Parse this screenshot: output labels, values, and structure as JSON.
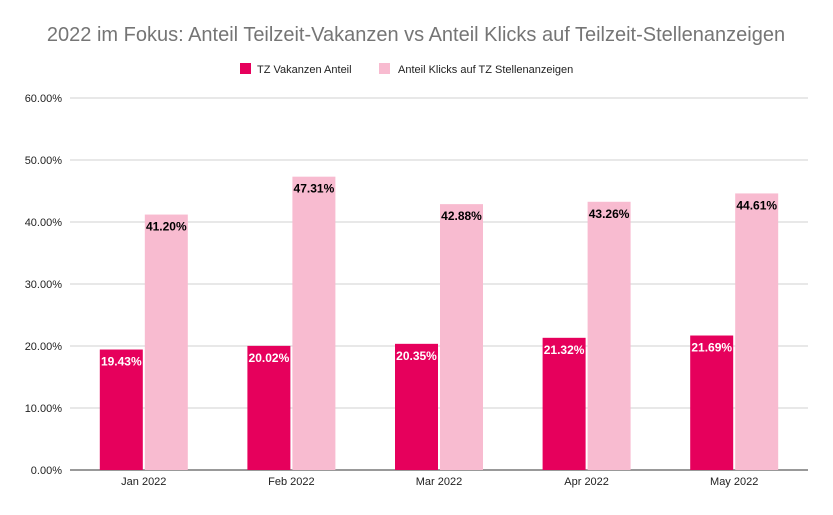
{
  "chart_data": {
    "type": "bar",
    "title": "2022 im Fokus: Anteil Teilzeit-Vakanzen vs Anteil Klicks auf Teilzeit-Stellenanzeigen",
    "xlabel": "",
    "ylabel": "",
    "categories": [
      "Jan 2022",
      "Feb 2022",
      "Mar 2022",
      "Apr 2022",
      "May 2022"
    ],
    "series": [
      {
        "name": "TZ Vakanzen Anteil",
        "color": "#e6005c",
        "label_color": "#ffffff",
        "values": [
          19.43,
          20.02,
          20.35,
          21.32,
          21.69
        ],
        "labels": [
          "19.43%",
          "20.02%",
          "20.35%",
          "21.32%",
          "21.69%"
        ]
      },
      {
        "name": "Anteil Klicks auf TZ Stellenanzeigen",
        "color": "#f8bbd0",
        "label_color": "#000000",
        "values": [
          41.2,
          47.31,
          42.88,
          43.26,
          44.61
        ],
        "labels": [
          "41.20%",
          "47.31%",
          "42.88%",
          "43.26%",
          "44.61%"
        ]
      }
    ],
    "ylim": [
      0,
      60
    ],
    "yticks": [
      0,
      10,
      20,
      30,
      40,
      50,
      60
    ],
    "ytick_labels": [
      "0.00%",
      "10.00%",
      "20.00%",
      "30.00%",
      "40.00%",
      "50.00%",
      "60.00%"
    ],
    "grid": true,
    "legend_position": "top-center"
  }
}
